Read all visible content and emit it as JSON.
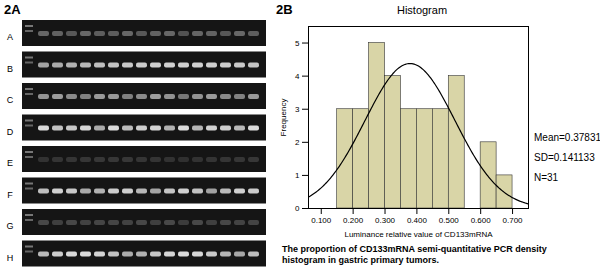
{
  "panel_labels": [
    "2A",
    "2B"
  ],
  "gel": {
    "lanes": [
      "A",
      "B",
      "C",
      "D",
      "E",
      "F",
      "G",
      "H"
    ]
  },
  "chart_data": {
    "type": "histogram",
    "title": "Histogram",
    "x_label": "Luminance relative value of CD133mRNA",
    "y_label": "Frequency",
    "caption": "The proportion of CD133mRNA semi-quantitative PCR density histogram in gastric primary tumors.",
    "bins": [
      0.15,
      0.2,
      0.25,
      0.3,
      0.35,
      0.4,
      0.45,
      0.5,
      0.55,
      0.6,
      0.65,
      0.7
    ],
    "values": [
      3,
      3,
      5,
      4,
      3,
      3,
      3,
      4,
      0,
      2,
      1
    ],
    "color": "#d9d5a7",
    "stats": [
      {
        "value": 0.37831,
        "label": "Mean=0.37831"
      },
      {
        "value": 0.141133,
        "label": "SD=0.141133"
      },
      {
        "value": 31,
        "label": "N=31"
      }
    ],
    "xlim": [
      0.06,
      0.75
    ],
    "xticks": [
      {
        "value": 0.1,
        "label": "0.100"
      },
      {
        "value": 0.2,
        "label": "0.200"
      },
      {
        "value": 0.3,
        "label": "0.300"
      },
      {
        "value": 0.4,
        "label": "0.400"
      },
      {
        "value": 0.5,
        "label": "0.500"
      },
      {
        "value": 0.6,
        "label": "0.600"
      },
      {
        "value": 0.7,
        "label": "0.700"
      }
    ],
    "ylim": [
      0,
      5.5
    ],
    "yticks": [
      0,
      1,
      2,
      3,
      4,
      5
    ],
    "grid": false
  }
}
